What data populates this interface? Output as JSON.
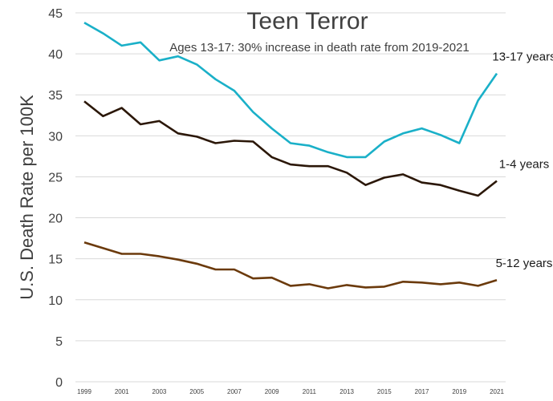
{
  "chart_data": {
    "type": "line",
    "title": "Teen Terror",
    "subtitle": "Ages 13-17: 30% increase in death rate from 2019-2021",
    "xlabel": "",
    "ylabel": "U.S. Death Rate per 100K",
    "ylim": [
      0,
      45
    ],
    "yticks": [
      0,
      5,
      10,
      15,
      20,
      25,
      30,
      35,
      40,
      45
    ],
    "xticks": [
      1999,
      2001,
      2003,
      2005,
      2007,
      2009,
      2011,
      2013,
      2015,
      2017,
      2019,
      2021
    ],
    "grid": true,
    "x": [
      1999,
      2000,
      2001,
      2002,
      2003,
      2004,
      2005,
      2006,
      2007,
      2008,
      2009,
      2010,
      2011,
      2012,
      2013,
      2014,
      2015,
      2016,
      2017,
      2018,
      2019,
      2020,
      2021
    ],
    "series": [
      {
        "name": "13-17 years",
        "color": "#1ab0c8",
        "values": [
          43.8,
          42.5,
          41.0,
          41.4,
          39.2,
          39.7,
          38.7,
          36.9,
          35.5,
          32.9,
          30.9,
          29.1,
          28.8,
          28.0,
          27.4,
          27.4,
          29.3,
          30.3,
          30.9,
          30.1,
          29.1,
          34.3,
          37.6
        ]
      },
      {
        "name": "1-4 years",
        "color": "#2b1708",
        "values": [
          34.2,
          32.4,
          33.4,
          31.4,
          31.8,
          30.3,
          29.9,
          29.1,
          29.4,
          29.3,
          27.4,
          26.5,
          26.3,
          26.3,
          25.5,
          24.0,
          24.9,
          25.3,
          24.3,
          24.0,
          23.3,
          22.7,
          24.5
        ]
      },
      {
        "name": "5-12 years",
        "color": "#6b3a0c",
        "values": [
          17.0,
          16.3,
          15.6,
          15.6,
          15.3,
          14.9,
          14.4,
          13.7,
          13.7,
          12.6,
          12.7,
          11.7,
          11.9,
          11.4,
          11.8,
          11.5,
          11.6,
          12.2,
          12.1,
          11.9,
          12.1,
          11.7,
          12.4
        ]
      }
    ]
  }
}
